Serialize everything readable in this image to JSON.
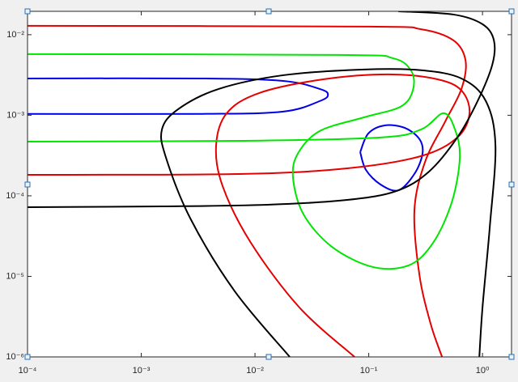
{
  "chart_data": {
    "type": "line",
    "xscale": "log",
    "yscale": "log",
    "xlim": [
      0.0001,
      1.8
    ],
    "ylim": [
      1e-06,
      0.0195
    ],
    "xticks": [
      {
        "value": 0.0001,
        "label": "10⁻⁴"
      },
      {
        "value": 0.001,
        "label": "10⁻³"
      },
      {
        "value": 0.01,
        "label": "10⁻²"
      },
      {
        "value": 0.1,
        "label": "10⁻¹"
      },
      {
        "value": 1,
        "label": "10⁰"
      }
    ],
    "yticks": [
      {
        "value": 1e-06,
        "label": "10⁻⁶"
      },
      {
        "value": 1e-05,
        "label": "10⁻⁵"
      },
      {
        "value": 0.0001,
        "label": "10⁻⁴"
      },
      {
        "value": 0.001,
        "label": "10⁻³"
      },
      {
        "value": 0.01,
        "label": "10⁻²"
      }
    ],
    "series": [
      {
        "color": "#0000e6",
        "x": [
          0.0001,
          0.00344,
          0.0177,
          0.0371,
          0.0438,
          0.0371,
          0.0177,
          0.00344,
          0.0001
        ],
        "y": [
          0.00286,
          0.00286,
          0.00267,
          0.00212,
          0.0018,
          0.0015,
          0.00111,
          0.00104,
          0.00104
        ]
      },
      {
        "color": "#0000e6",
        "x": [
          0.0841,
          0.0991,
          0.138,
          0.207,
          0.279,
          0.297,
          0.252,
          0.182,
          0.127,
          0.0944,
          0.0841
        ],
        "y": [
          0.000349,
          0.000594,
          0.000748,
          0.000698,
          0.000506,
          0.000334,
          0.000187,
          0.000117,
          0.000138,
          0.00021,
          0.000349
        ]
      },
      {
        "color": "#e60000",
        "x": [
          0.0001,
          0.0914,
          0.288,
          0.555,
          0.71,
          0.653,
          0.471,
          0.313,
          0.252,
          0.279,
          0.35,
          0.441
        ],
        "y": [
          0.0129,
          0.0126,
          0.0117,
          0.00851,
          0.00476,
          0.00212,
          0.000841,
          0.000265,
          6.59e-05,
          1.04e-05,
          2.58e-06,
          1e-06
        ]
      },
      {
        "color": "#e60000",
        "x": [
          0.0001,
          0.00782,
          0.0659,
          0.288,
          0.601,
          0.769,
          0.653,
          0.399,
          0.149,
          0.0403,
          0.0109,
          0.00564,
          0.00455,
          0.00519,
          0.0092,
          0.0246,
          0.075
        ],
        "y": [
          0.000182,
          0.000187,
          0.00022,
          0.000311,
          0.00053,
          0.00106,
          0.00203,
          0.0028,
          0.00322,
          0.0028,
          0.00189,
          0.00106,
          0.00042,
          0.000132,
          2.61e-05,
          4.1e-06,
          1e-06
        ]
      },
      {
        "color": "#00e600",
        "x": [
          0.0001,
          0.0558,
          0.162,
          0.237,
          0.244,
          0.191,
          0.0914,
          0.0371,
          0.0238,
          0.0216,
          0.0267,
          0.0474,
          0.108,
          0.225,
          0.368,
          0.537,
          0.632,
          0.573,
          0.455,
          0.288,
          0.127,
          0.00782,
          0.0001
        ],
        "y": [
          0.00574,
          0.00561,
          0.00512,
          0.00353,
          0.00203,
          0.00128,
          0.000944,
          0.000637,
          0.000334,
          0.000166,
          5.88e-05,
          2.33e-05,
          1.31e-05,
          1.37e-05,
          2.61e-05,
          8.32e-05,
          0.000297,
          0.000667,
          0.00106,
          0.000667,
          0.00053,
          0.000482,
          0.000471
        ]
      },
      {
        "color": "#000000",
        "x": [
          0.0001,
          0.00152,
          0.0128,
          0.0659,
          0.176,
          0.339,
          0.601,
          0.906,
          1.22,
          1.26,
          1.0,
          0.555,
          0.182
        ],
        "y": [
          7.22e-05,
          7.39e-05,
          7.75e-05,
          8.91e-05,
          0.000115,
          0.0002,
          0.00053,
          0.0015,
          0.00425,
          0.00851,
          0.0135,
          0.0178,
          0.0195
        ]
      },
      {
        "color": "#000000",
        "x": [
          0.0202,
          0.00664,
          0.0027,
          0.00165,
          0.00152,
          0.00211,
          0.00479,
          0.0177,
          0.0914,
          0.288,
          0.653,
          1.07,
          1.3,
          1.16,
          1.0,
          0.938
        ],
        "y": [
          1e-06,
          6.52e-06,
          5.24e-05,
          0.000297,
          0.000667,
          0.00119,
          0.00212,
          0.00314,
          0.0037,
          0.00362,
          0.00286,
          0.0015,
          0.00042,
          4.15e-05,
          4.1e-06,
          1e-06
        ]
      }
    ]
  }
}
